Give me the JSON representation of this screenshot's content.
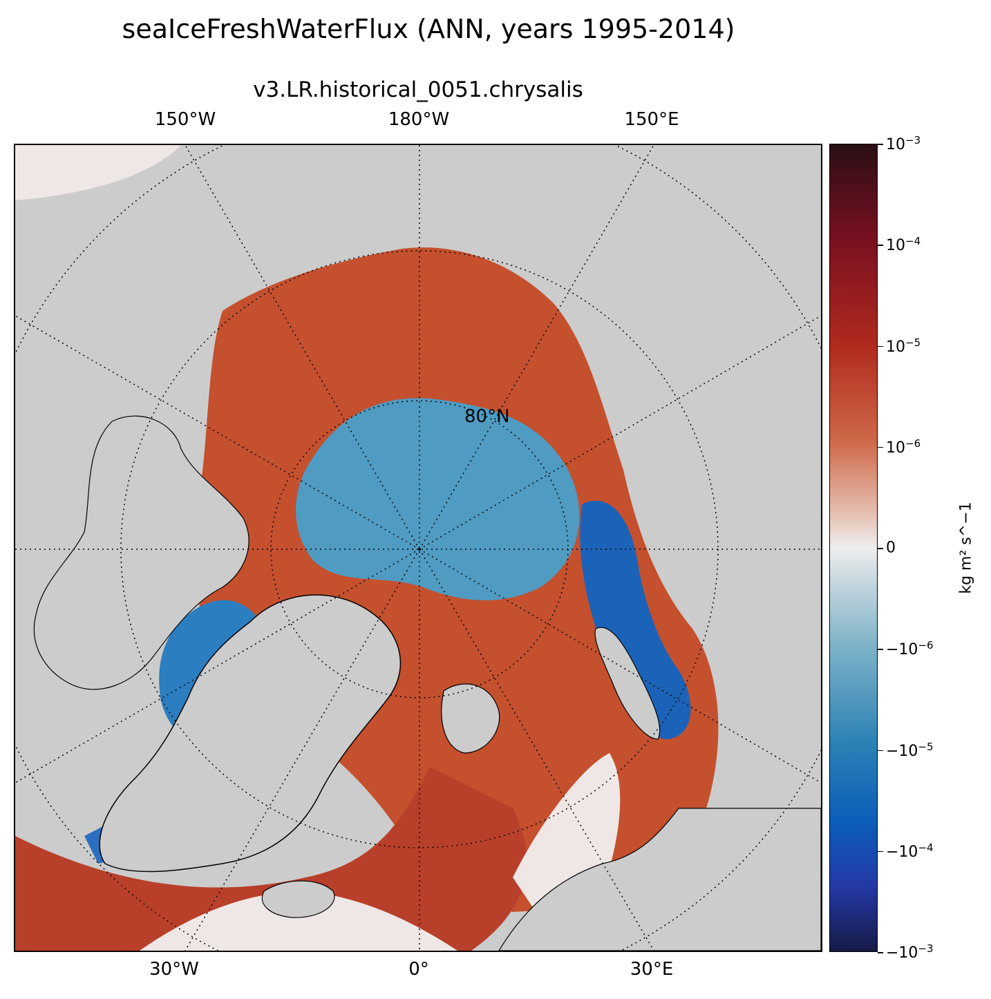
{
  "title": "seaIceFreshWaterFlux (ANN, years 1995-2014)",
  "subtitle": "v3.LR.historical_0051.chrysalis",
  "lon_labels_top": [
    "150°W",
    "180°W",
    "150°E"
  ],
  "lon_labels_bottom": [
    "30°W",
    "0°",
    "30°E"
  ],
  "lat_label": "80°N",
  "colorbar": {
    "label": "kg m² s^−1",
    "ticks": [
      {
        "base": "10",
        "exp": "−3",
        "sign": ""
      },
      {
        "base": "10",
        "exp": "−4",
        "sign": ""
      },
      {
        "base": "10",
        "exp": "−5",
        "sign": ""
      },
      {
        "base": "10",
        "exp": "−6",
        "sign": ""
      },
      {
        "base": "0",
        "exp": "",
        "sign": ""
      },
      {
        "base": "10",
        "exp": "−6",
        "sign": "−"
      },
      {
        "base": "10",
        "exp": "−5",
        "sign": "−"
      },
      {
        "base": "10",
        "exp": "−4",
        "sign": "−"
      },
      {
        "base": "10",
        "exp": "−3",
        "sign": "−"
      }
    ],
    "colors": [
      "#2a0f15",
      "#7a1020",
      "#b02a1e",
      "#cf6a4a",
      "#eeeeee",
      "#7fb4c8",
      "#2d82b5",
      "#0b5db8",
      "#151a45"
    ]
  },
  "map": {
    "land_color": "#cccccc",
    "positive_color": "#c4502e",
    "negative_color": "#4f9bc2",
    "strong_negative_color": "#1b63b8"
  }
}
